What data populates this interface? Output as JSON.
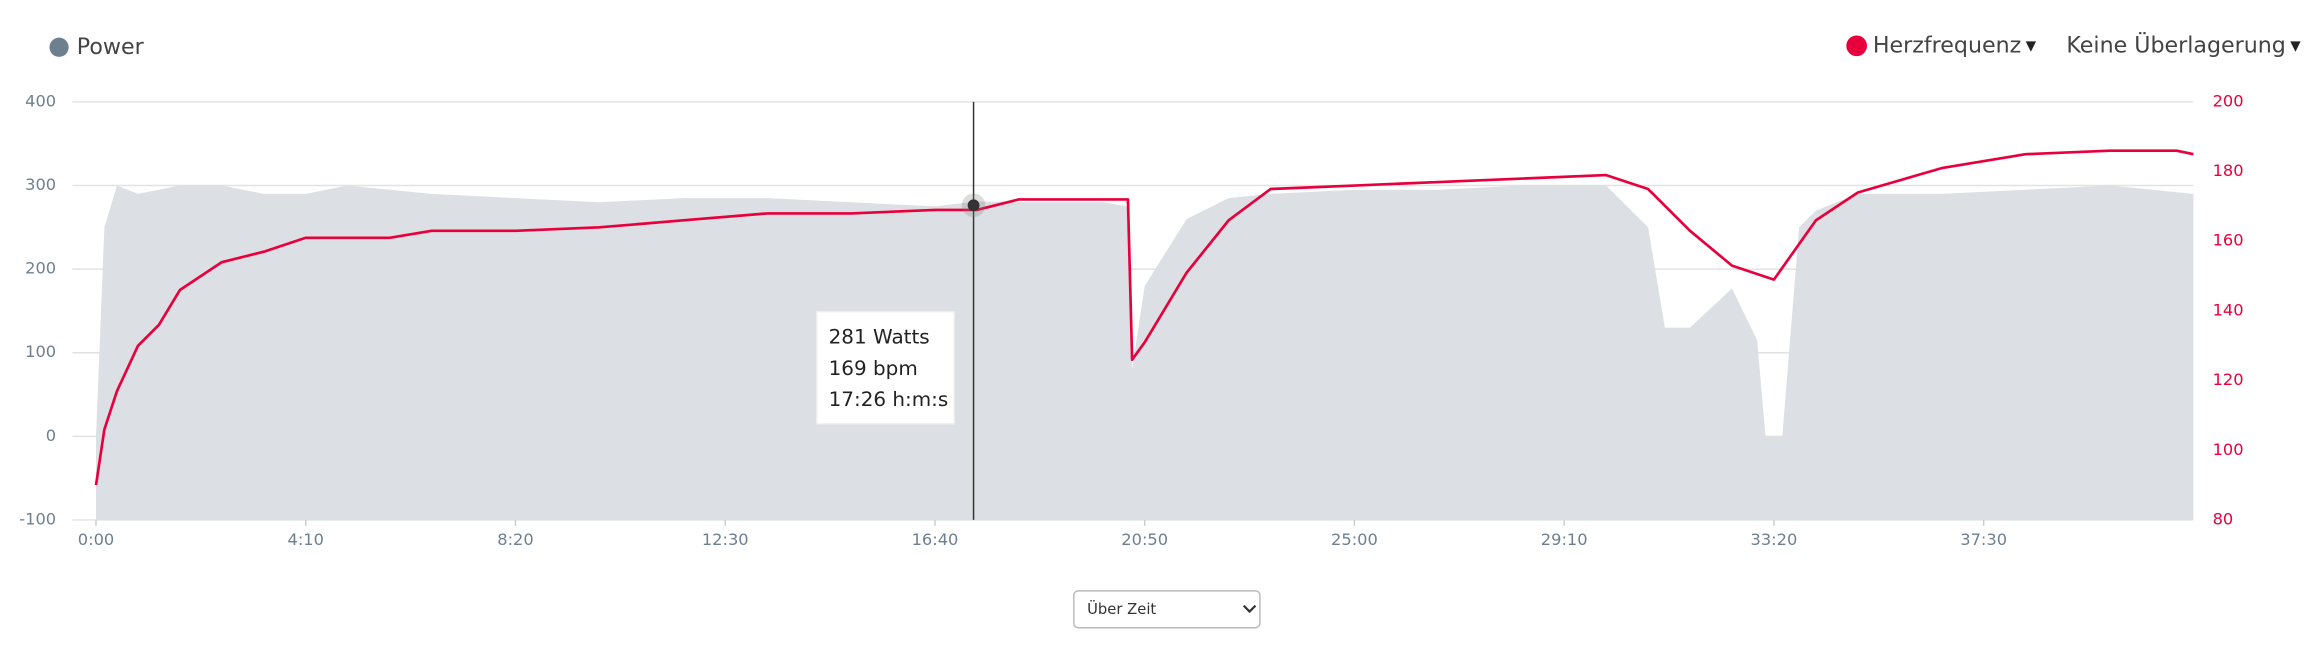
{
  "chart_data": {
    "type": "line",
    "legend_left": "Power",
    "legend_right": "Herzfrequenz",
    "overlay_menu": "Keine Überlagerung",
    "x_mode_select": "Über Zeit",
    "xlim": [
      0,
      2500
    ],
    "xticks": [
      {
        "value": 0,
        "label": "0:00"
      },
      {
        "value": 250,
        "label": "4:10"
      },
      {
        "value": 500,
        "label": "8:20"
      },
      {
        "value": 750,
        "label": "12:30"
      },
      {
        "value": 1000,
        "label": "16:40"
      },
      {
        "value": 1250,
        "label": "20:50"
      },
      {
        "value": 1500,
        "label": "25:00"
      },
      {
        "value": 1750,
        "label": "29:10"
      },
      {
        "value": 2000,
        "label": "33:20"
      },
      {
        "value": 2250,
        "label": "37:30"
      }
    ],
    "ylim": [
      -100,
      400
    ],
    "yticks": [
      -100,
      0,
      100,
      200,
      300,
      400
    ],
    "y2lim": [
      80,
      200
    ],
    "y2ticks": [
      80,
      100,
      120,
      140,
      160,
      180,
      200
    ],
    "grid": true,
    "series": [
      {
        "name": "Power",
        "color": "#6e8090",
        "area_color": "#dcdfe3",
        "x": [
          0,
          10,
          25,
          50,
          75,
          100,
          150,
          200,
          250,
          300,
          400,
          500,
          600,
          700,
          800,
          900,
          1000,
          1050,
          1100,
          1200,
          1230,
          1235,
          1250,
          1300,
          1350,
          1400,
          1500,
          1600,
          1700,
          1800,
          1850,
          1870,
          1900,
          1950,
          1980,
          1990,
          2010,
          2030,
          2050,
          2100,
          2200,
          2300,
          2400,
          2500
        ],
        "values": [
          0,
          250,
          300,
          290,
          295,
          300,
          300,
          290,
          290,
          300,
          290,
          285,
          280,
          285,
          285,
          280,
          275,
          281,
          280,
          280,
          275,
          80,
          180,
          260,
          285,
          290,
          295,
          295,
          300,
          300,
          250,
          130,
          130,
          177,
          115,
          0,
          0,
          250,
          270,
          290,
          290,
          295,
          300,
          290
        ]
      },
      {
        "name": "Herzfrequenz",
        "color": "#e8003d",
        "axis": "y2",
        "x": [
          0,
          10,
          25,
          50,
          75,
          100,
          150,
          200,
          250,
          350,
          400,
          500,
          600,
          700,
          800,
          900,
          1000,
          1050,
          1100,
          1200,
          1230,
          1235,
          1250,
          1300,
          1350,
          1400,
          1500,
          1600,
          1700,
          1800,
          1850,
          1900,
          1950,
          2000,
          2050,
          2100,
          2200,
          2300,
          2400,
          2480,
          2500
        ],
        "values": [
          90,
          106,
          117,
          130,
          136,
          146,
          154,
          157,
          161,
          161,
          163,
          163,
          164,
          166,
          168,
          168,
          169,
          169,
          172,
          172,
          172,
          126,
          131,
          151,
          166,
          175,
          176,
          177,
          178,
          179,
          175,
          163,
          153,
          149,
          166,
          174,
          181,
          185,
          186,
          186,
          185
        ]
      }
    ],
    "tooltip": {
      "x": 1046,
      "lines": [
        "281 Watts",
        "169 bpm",
        "17:26 h:m:s"
      ]
    }
  }
}
